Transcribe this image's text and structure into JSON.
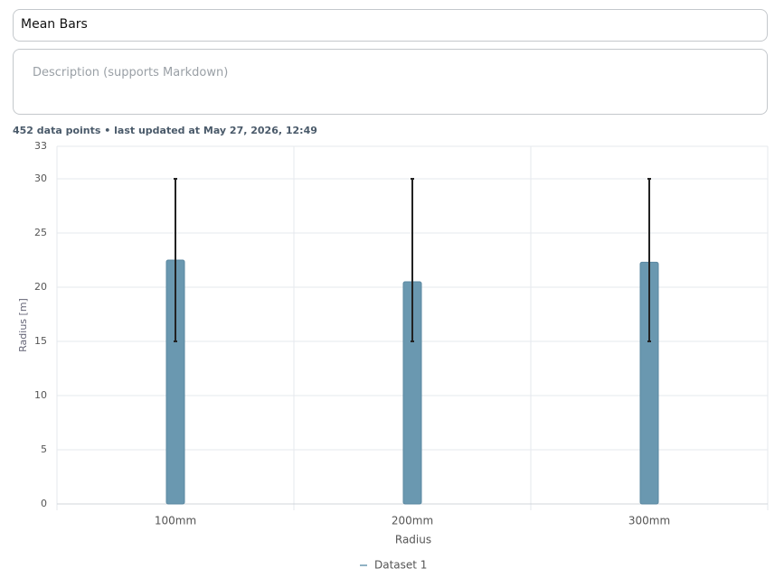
{
  "title_input": "Mean Bars",
  "description_placeholder": "Description (supports Markdown)",
  "meta": "452 data points • last updated at May 27, 2026, 12:49",
  "chart_data": {
    "type": "bar",
    "x_label": "Radius",
    "y_label": "Radius  [m]",
    "categories": [
      "100mm",
      "200mm",
      "300mm"
    ],
    "series": [
      {
        "name": "Dataset 1",
        "color": "#6a98b0",
        "values": [
          22.5,
          20.5,
          22.3
        ],
        "error_lower": [
          15,
          15,
          15
        ],
        "error_upper": [
          30,
          30,
          30
        ]
      }
    ],
    "ylim": [
      0,
      33
    ],
    "yticks": [
      0,
      5,
      10,
      15,
      20,
      25,
      30,
      33
    ],
    "grid": true,
    "legend": "bottom"
  }
}
